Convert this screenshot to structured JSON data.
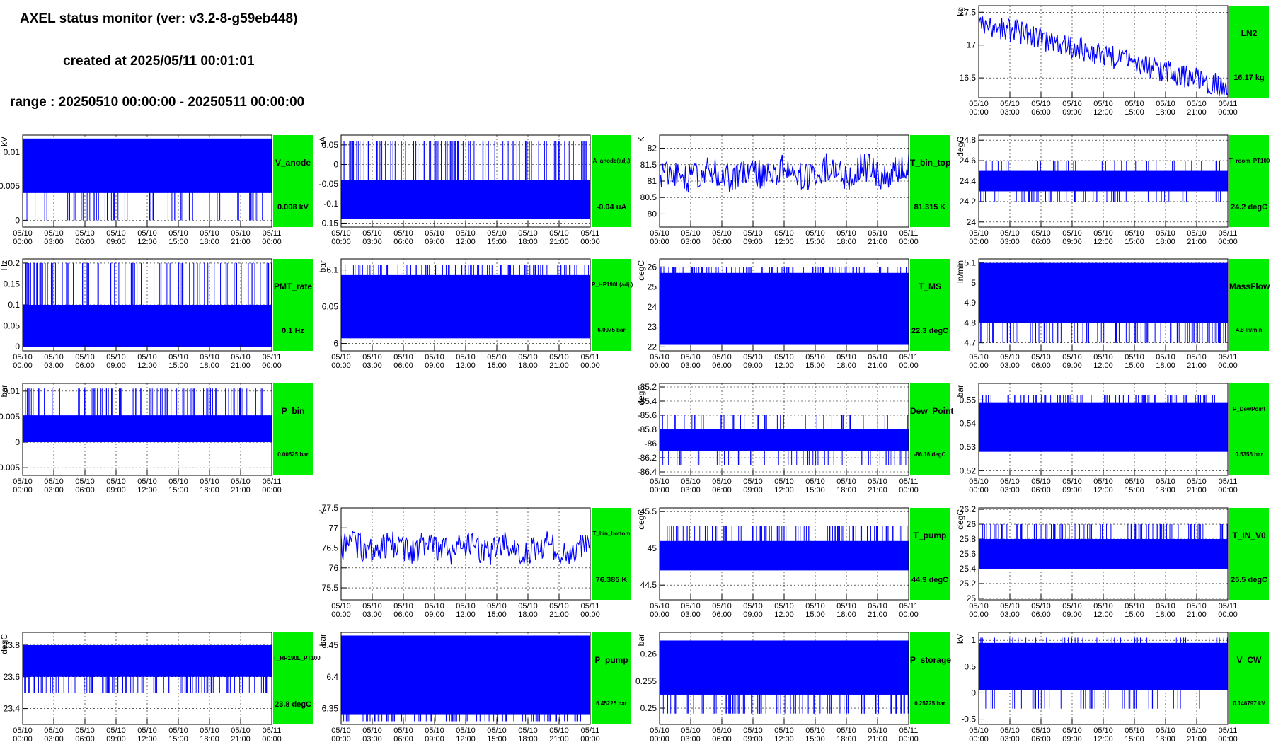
{
  "header": {
    "title": "AXEL status monitor (ver: v3.2-8-g59eb448)",
    "created": "created at 2025/05/11 00:01:01",
    "range": "range : 20250510 00:00:00 - 20250511 00:00:00"
  },
  "x_ticks": {
    "dates": [
      "05/10",
      "05/10",
      "05/10",
      "05/10",
      "05/10",
      "05/10",
      "05/10",
      "05/10",
      "05/11"
    ],
    "times": [
      "00:00",
      "03:00",
      "06:00",
      "09:00",
      "12:00",
      "15:00",
      "18:00",
      "21:00",
      "00:00"
    ]
  },
  "colors": {
    "trace": "#0000ff",
    "status_box": "#00ee00"
  },
  "chart_data": [
    {
      "id": "ln2",
      "type": "line",
      "row": 0,
      "col": 3,
      "name": "LN2",
      "value_text": "16.17 kg",
      "ylabel": "kg",
      "ylim": [
        16.2,
        17.6
      ],
      "yticks": [
        16.5,
        17,
        17.5
      ],
      "ytick_labels": [
        "16.5",
        "17",
        "17.5"
      ],
      "grid": true,
      "pattern": "trend",
      "start": 17.35,
      "end": 16.35,
      "spread": 0.18
    },
    {
      "id": "v_anode",
      "type": "line",
      "row": 1,
      "col": 0,
      "name": "V_anode",
      "value_text": "0.008 kV",
      "ylabel": "kV",
      "ylim": [
        -0.001,
        0.0125
      ],
      "yticks": [
        0,
        0.005,
        0.01
      ],
      "ytick_labels": [
        "0",
        "0.005",
        "0.01"
      ],
      "grid": true,
      "pattern": "band",
      "lo": 0.004,
      "hi": 0.012,
      "spikes": [
        0,
        0.008
      ]
    },
    {
      "id": "a_anode",
      "type": "line",
      "row": 1,
      "col": 1,
      "name": "A_anode(adj.)",
      "value_text": "-0.04 uA",
      "ylabel": "uA",
      "ylim": [
        -0.16,
        0.075
      ],
      "yticks": [
        -0.15,
        -0.1,
        -0.05,
        0,
        0.05
      ],
      "ytick_labels": [
        "-0.15",
        "-0.1",
        "-0.05",
        "0",
        "0.05"
      ],
      "grid": true,
      "pattern": "band",
      "lo": -0.14,
      "hi": -0.04,
      "spikes": [
        0.06
      ]
    },
    {
      "id": "t_bin_top",
      "type": "line",
      "row": 1,
      "col": 2,
      "name": "T_bin_top",
      "value_text": "81.315 K",
      "ylabel": "K",
      "ylim": [
        79.6,
        82.4
      ],
      "yticks": [
        80,
        80.5,
        81,
        81.5,
        82
      ],
      "ytick_labels": [
        "80",
        "80.5",
        "81",
        "81.5",
        "82"
      ],
      "grid": true,
      "pattern": "noise",
      "start": 81.2,
      "end": 81.3,
      "spread": 0.45
    },
    {
      "id": "t_room",
      "type": "line",
      "row": 1,
      "col": 3,
      "name": "T_room_PT100",
      "value_text": "24.2 degC",
      "ylabel": "degC",
      "ylim": [
        23.95,
        24.85
      ],
      "yticks": [
        24,
        24.2,
        24.4,
        24.6,
        24.8
      ],
      "ytick_labels": [
        "24",
        "24.2",
        "24.4",
        "24.6",
        "24.8"
      ],
      "grid": true,
      "pattern": "band",
      "lo": 24.3,
      "hi": 24.5,
      "spikes": [
        24.2,
        24.6
      ]
    },
    {
      "id": "pmt_rate",
      "type": "line",
      "row": 2,
      "col": 0,
      "name": "PMT_rate",
      "value_text": "0.1 Hz",
      "ylabel": "Hz",
      "ylim": [
        -0.01,
        0.21
      ],
      "yticks": [
        0,
        0.05,
        0.1,
        0.15,
        0.2
      ],
      "ytick_labels": [
        "0",
        "0.05",
        "0.1",
        "0.15",
        "0.2"
      ],
      "grid": true,
      "pattern": "band",
      "lo": 0,
      "hi": 0.1,
      "spikes": [
        0.2
      ]
    },
    {
      "id": "p_hp190l",
      "type": "line",
      "row": 2,
      "col": 1,
      "name": "P_HP190L(adj.)",
      "value_text": "6.0075 bar",
      "ylabel": "bar",
      "ylim": [
        5.99,
        6.115
      ],
      "yticks": [
        6,
        6.05,
        6.1
      ],
      "ytick_labels": [
        "6",
        "6.05",
        "6.1"
      ],
      "grid": true,
      "pattern": "band",
      "lo": 6.007,
      "hi": 6.093,
      "spikes": [
        6.107
      ]
    },
    {
      "id": "t_ms",
      "type": "line",
      "row": 2,
      "col": 2,
      "name": "T_MS",
      "value_text": "22.3 degC",
      "ylabel": "degC",
      "ylim": [
        21.8,
        26.4
      ],
      "yticks": [
        22,
        23,
        24,
        25,
        26
      ],
      "ytick_labels": [
        "22",
        "23",
        "24",
        "25",
        "26"
      ],
      "grid": true,
      "pattern": "band",
      "lo": 22.1,
      "hi": 25.7,
      "spikes": [
        26
      ]
    },
    {
      "id": "massflow",
      "type": "line",
      "row": 2,
      "col": 3,
      "name": "MassFlow",
      "value_text": "4.8 ln/min",
      "ylabel": "ln/min",
      "ylim": [
        4.66,
        5.12
      ],
      "yticks": [
        4.7,
        4.8,
        4.9,
        5,
        5.1
      ],
      "ytick_labels": [
        "4.7",
        "4.8",
        "4.9",
        "5",
        "5.1"
      ],
      "grid": true,
      "pattern": "band",
      "lo": 4.8,
      "hi": 5.1,
      "spikes": [
        4.7
      ]
    },
    {
      "id": "p_bin",
      "type": "line",
      "row": 3,
      "col": 0,
      "name": "P_bin",
      "value_text": "0.00525 bar",
      "ylabel": "bar",
      "ylim": [
        -0.0065,
        0.0115
      ],
      "yticks": [
        -0.005,
        0,
        0.005,
        0.01
      ],
      "ytick_labels": [
        "-0.005",
        "0",
        "0.005",
        "0.01"
      ],
      "grid": true,
      "pattern": "band",
      "lo": 0,
      "hi": 0.00525,
      "spikes": [
        0.0105
      ]
    },
    {
      "id": "dew_point",
      "type": "line",
      "row": 3,
      "col": 2,
      "name": "Dew_Point",
      "value_text": "-86.16 degC",
      "ylabel": "degC",
      "ylim": [
        -86.45,
        -85.15
      ],
      "yticks": [
        -86.4,
        -86.2,
        -86,
        -85.8,
        -85.6,
        -85.4,
        -85.2
      ],
      "ytick_labels": [
        "-86.4",
        "-86.2",
        "-86",
        "-85.8",
        "-85.6",
        "-85.4",
        "-85.2"
      ],
      "grid": true,
      "pattern": "band",
      "lo": -86.1,
      "hi": -85.8,
      "spikes": [
        -86.3,
        -85.6
      ]
    },
    {
      "id": "p_dewpoint",
      "type": "line",
      "row": 3,
      "col": 3,
      "name": "P_DewPoint",
      "value_text": "0.5355 bar",
      "ylabel": "bar",
      "ylim": [
        0.518,
        0.557
      ],
      "yticks": [
        0.52,
        0.53,
        0.54,
        0.55
      ],
      "ytick_labels": [
        "0.52",
        "0.53",
        "0.54",
        "0.55"
      ],
      "grid": true,
      "pattern": "band",
      "lo": 0.528,
      "hi": 0.549,
      "spikes": [
        0.552
      ]
    },
    {
      "id": "t_bin_bottom",
      "type": "line",
      "row": 4,
      "col": 1,
      "name": "T_bin_bottom",
      "value_text": "76.385 K",
      "ylabel": "K",
      "ylim": [
        75.2,
        77.5
      ],
      "yticks": [
        75.5,
        76,
        76.5,
        77,
        77.5
      ],
      "ytick_labels": [
        "75.5",
        "76",
        "76.5",
        "77",
        "77.5"
      ],
      "grid": true,
      "pattern": "noise",
      "start": 76.5,
      "end": 76.5,
      "spread": 0.35
    },
    {
      "id": "t_pump",
      "type": "line",
      "row": 4,
      "col": 2,
      "name": "T_pump",
      "value_text": "44.9 degC",
      "ylabel": "degC",
      "ylim": [
        44.3,
        45.55
      ],
      "yticks": [
        44.5,
        45,
        45.5
      ],
      "ytick_labels": [
        "44.5",
        "45",
        "45.5"
      ],
      "grid": true,
      "pattern": "band",
      "lo": 44.7,
      "hi": 45.1,
      "spikes": [
        45.3
      ]
    },
    {
      "id": "t_in_v0",
      "type": "line",
      "row": 4,
      "col": 3,
      "name": "T_IN_V0",
      "value_text": "25.5 degC",
      "ylabel": "degC",
      "ylim": [
        24.98,
        26.22
      ],
      "yticks": [
        25,
        25.2,
        25.4,
        25.6,
        25.8,
        26,
        26.2
      ],
      "ytick_labels": [
        "25",
        "25.2",
        "25.4",
        "25.6",
        "25.8",
        "26",
        "26.2"
      ],
      "grid": true,
      "pattern": "band",
      "lo": 25.4,
      "hi": 25.8,
      "spikes": [
        26
      ]
    },
    {
      "id": "t_hp190l",
      "type": "line",
      "row": 5,
      "col": 0,
      "name": "T_HP190L_PT100",
      "value_text": "23.8 degC",
      "ylabel": "degC",
      "ylim": [
        23.3,
        23.88
      ],
      "yticks": [
        23.4,
        23.6,
        23.8
      ],
      "ytick_labels": [
        "23.4",
        "23.6",
        "23.8"
      ],
      "grid": true,
      "pattern": "band",
      "lo": 23.6,
      "hi": 23.8,
      "spikes": [
        23.5
      ]
    },
    {
      "id": "p_pump",
      "type": "line",
      "row": 5,
      "col": 1,
      "name": "P_pump",
      "value_text": "6.45225 bar",
      "ylabel": "bar",
      "ylim": [
        6.325,
        6.47
      ],
      "yticks": [
        6.35,
        6.4,
        6.45
      ],
      "ytick_labels": [
        "6.35",
        "6.4",
        "6.45"
      ],
      "grid": true,
      "pattern": "band",
      "lo": 6.34,
      "hi": 6.465,
      "spikes": [
        6.33
      ]
    },
    {
      "id": "p_storage",
      "type": "line",
      "row": 5,
      "col": 2,
      "name": "P_storage",
      "value_text": "0.25725 bar",
      "ylabel": "bar",
      "ylim": [
        0.247,
        0.264
      ],
      "yticks": [
        0.25,
        0.255,
        0.26
      ],
      "ytick_labels": [
        "0.25",
        "0.255",
        "0.26"
      ],
      "grid": true,
      "pattern": "band",
      "lo": 0.2525,
      "hi": 0.2625,
      "spikes": [
        0.249
      ]
    },
    {
      "id": "v_cw",
      "type": "line",
      "row": 5,
      "col": 3,
      "name": "V_CW",
      "value_text": "0.146797 kV",
      "ylabel": "kV",
      "ylim": [
        -0.6,
        1.15
      ],
      "yticks": [
        -0.5,
        0,
        0.5,
        1
      ],
      "ytick_labels": [
        "-0.5",
        "0",
        "0.5",
        "1"
      ],
      "grid": true,
      "pattern": "band",
      "lo": 0.05,
      "hi": 0.95,
      "spikes": [
        1.05,
        -0.3
      ]
    }
  ]
}
